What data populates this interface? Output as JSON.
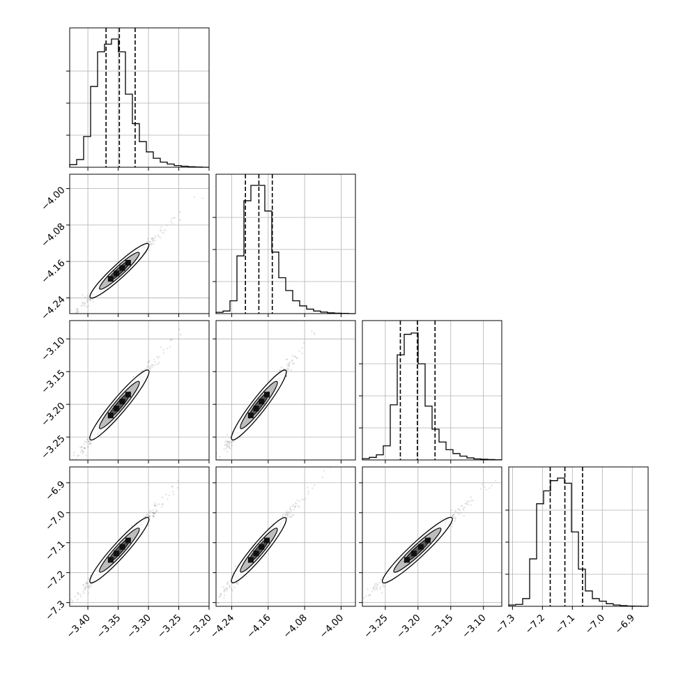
{
  "chart_data": {
    "type": "corner",
    "title": "",
    "parameters": [
      {
        "range": [
          -3.43,
          -3.2
        ],
        "ticks": [
          -3.4,
          -3.35,
          -3.3,
          -3.25,
          -3.2
        ],
        "tick_labels": [
          "−3.40",
          "−3.35",
          "−3.30",
          "−3.25",
          "−3.20"
        ],
        "quantiles": [
          -3.37,
          -3.348,
          -3.322
        ]
      },
      {
        "range": [
          -4.2745,
          -3.9685
        ],
        "ticks": [
          -4.24,
          -4.16,
          -4.08,
          -4.0
        ],
        "tick_labels": [
          "−4.24",
          "−4.16",
          "−4.08",
          "−4.00"
        ],
        "quantiles": [
          -4.21,
          -4.1805,
          -4.151
        ]
      },
      {
        "range": [
          -3.285,
          -3.072
        ],
        "ticks": [
          -3.25,
          -3.2,
          -3.15,
          -3.1
        ],
        "tick_labels": [
          "−3.25",
          "−3.20",
          "−3.15",
          "−3.10"
        ],
        "quantiles": [
          -3.227,
          -3.201,
          -3.174
        ]
      },
      {
        "range": [
          -7.3125,
          -6.847
        ],
        "ticks": [
          -7.3,
          -7.2,
          -7.1,
          -7.0,
          -6.9
        ],
        "tick_labels": [
          "−7.3",
          "−7.2",
          "−7.1",
          "−7.0",
          "−6.9"
        ],
        "quantiles": [
          -7.174,
          -7.125,
          -7.066
        ]
      }
    ],
    "histograms": [
      [
        0.02,
        0.06,
        0.24,
        0.63,
        0.9,
        0.96,
        1.0,
        0.9,
        0.57,
        0.34,
        0.2,
        0.12,
        0.07,
        0.04,
        0.025,
        0.013,
        0.008,
        0.004,
        0.002,
        0
      ],
      [
        0.01,
        0.02,
        0.1,
        0.45,
        0.88,
        1.0,
        1.0,
        0.8,
        0.48,
        0.28,
        0.18,
        0.1,
        0.06,
        0.035,
        0.02,
        0.012,
        0.006,
        0.003,
        0.002,
        0
      ],
      [
        0.01,
        0.02,
        0.04,
        0.11,
        0.43,
        0.82,
        0.98,
        0.99,
        0.75,
        0.42,
        0.24,
        0.14,
        0.08,
        0.05,
        0.03,
        0.016,
        0.008,
        0.005,
        0.003,
        0.001
      ],
      [
        0.01,
        0.015,
        0.06,
        0.37,
        0.8,
        0.9,
        0.98,
        1.0,
        0.96,
        0.58,
        0.29,
        0.12,
        0.06,
        0.04,
        0.02,
        0.01,
        0.005,
        0.002,
        0.001,
        0
      ]
    ],
    "correlation": 0.99,
    "grid": true
  }
}
